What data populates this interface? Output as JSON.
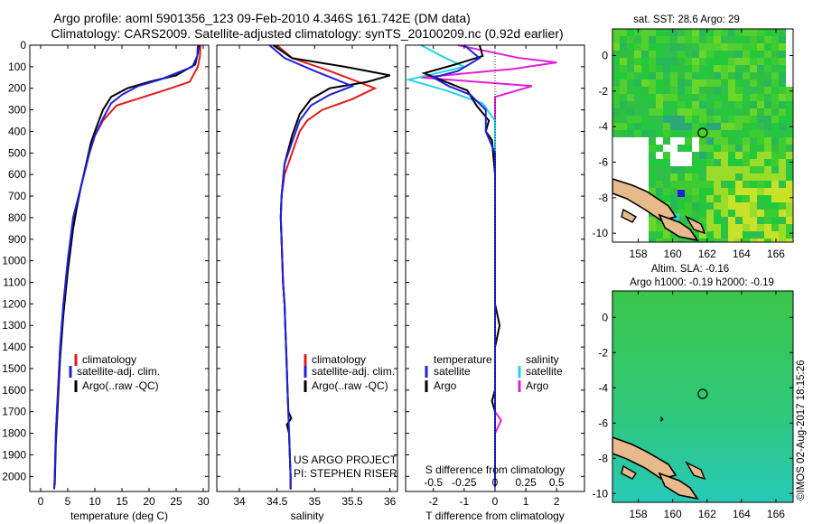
{
  "header": {
    "line1": "Argo profile: aoml 5901356_123 09-Feb-2010 4.346S 161.742E (DM data)",
    "line2": "Climatology: CARS2009. Satellite-adjusted climatology: synTS_20100209.nc (0.92d earlier)"
  },
  "colors": {
    "climatology": "#e31a1c",
    "satellite": "#1f1fdd",
    "argo": "#000000",
    "sat_salinity": "#22d5e8",
    "argo_salinity": "#e020d8"
  },
  "chart_data": [
    {
      "type": "line",
      "name": "temperature",
      "xlabel": "temperature (deg C)",
      "ylabel": "",
      "xlim": [
        -2,
        31
      ],
      "ylim": [
        2070,
        0
      ],
      "xticks": [
        "0",
        "5",
        "10",
        "15",
        "20",
        "25",
        "30"
      ],
      "yticks": [
        "0",
        "100",
        "200",
        "300",
        "400",
        "500",
        "600",
        "700",
        "800",
        "900",
        "1000",
        "1100",
        "1200",
        "1300",
        "1400",
        "1500",
        "1600",
        "1700",
        "1800",
        "1900",
        "2000"
      ],
      "legend": [
        "climatology",
        "satellite-adj. clim.",
        "Argo(..raw -QC)"
      ],
      "series": [
        {
          "name": "climatology",
          "points": [
            [
              29.5,
              0
            ],
            [
              29.4,
              50
            ],
            [
              29,
              100
            ],
            [
              27.5,
              170
            ],
            [
              24,
              200
            ],
            [
              19,
              240
            ],
            [
              14,
              280
            ],
            [
              11.5,
              350
            ],
            [
              10,
              420
            ],
            [
              9,
              500
            ],
            [
              8,
              600
            ],
            [
              7,
              700
            ],
            [
              6,
              800
            ],
            [
              5.5,
              900
            ],
            [
              5,
              1000
            ],
            [
              4.6,
              1100
            ],
            [
              4.2,
              1200
            ],
            [
              3.9,
              1300
            ],
            [
              3.6,
              1400
            ],
            [
              3.4,
              1500
            ],
            [
              3.2,
              1600
            ],
            [
              3,
              1700
            ],
            [
              2.8,
              1800
            ],
            [
              2.7,
              1900
            ],
            [
              2.6,
              2000
            ],
            [
              2.5,
              2060
            ]
          ]
        },
        {
          "name": "satellite",
          "points": [
            [
              29,
              0
            ],
            [
              28.9,
              50
            ],
            [
              28,
              100
            ],
            [
              22,
              160
            ],
            [
              18,
              190
            ],
            [
              15,
              230
            ],
            [
              13,
              270
            ],
            [
              11.5,
              340
            ],
            [
              10,
              420
            ],
            [
              9,
              500
            ],
            [
              8,
              600
            ],
            [
              7,
              700
            ],
            [
              6,
              800
            ],
            [
              5.5,
              900
            ],
            [
              5,
              1000
            ],
            [
              4.6,
              1100
            ],
            [
              4.2,
              1200
            ],
            [
              3.9,
              1300
            ],
            [
              3.6,
              1400
            ],
            [
              3.4,
              1500
            ],
            [
              3.2,
              1600
            ],
            [
              3,
              1700
            ],
            [
              2.8,
              1800
            ],
            [
              2.7,
              1900
            ],
            [
              2.6,
              2000
            ],
            [
              2.5,
              2060
            ]
          ]
        },
        {
          "name": "argo",
          "points": [
            [
              29.2,
              0
            ],
            [
              29,
              40
            ],
            [
              28.5,
              90
            ],
            [
              25,
              140
            ],
            [
              20,
              170
            ],
            [
              16,
              200
            ],
            [
              13,
              240
            ],
            [
              11.5,
              300
            ],
            [
              10.3,
              380
            ],
            [
              9.3,
              450
            ],
            [
              8.4,
              550
            ],
            [
              7.5,
              650
            ],
            [
              6.7,
              750
            ],
            [
              6,
              850
            ],
            [
              5.5,
              950
            ],
            [
              5,
              1050
            ],
            [
              4.6,
              1150
            ],
            [
              4.2,
              1250
            ],
            [
              3.9,
              1350
            ],
            [
              3.6,
              1450
            ],
            [
              3.4,
              1550
            ],
            [
              3.2,
              1650
            ],
            [
              3,
              1750
            ],
            [
              2.8,
              1850
            ],
            [
              2.7,
              1950
            ],
            [
              2.6,
              2040
            ]
          ]
        }
      ]
    },
    {
      "type": "line",
      "name": "salinity",
      "xlabel": "salinity",
      "ylabel": "",
      "xlim": [
        33.7,
        36.1
      ],
      "ylim": [
        2070,
        0
      ],
      "xticks": [
        "34",
        "34.5",
        "35",
        "35.5",
        "36"
      ],
      "legend": [
        "climatology",
        "satellite-adj. clim.",
        "Argo(..raw -QC)"
      ],
      "annotation": [
        "US ARGO PROJECT",
        "PI: STEPHEN RISER"
      ],
      "series": [
        {
          "name": "climatology",
          "points": [
            [
              34.5,
              0
            ],
            [
              34.7,
              60
            ],
            [
              35.2,
              120
            ],
            [
              35.8,
              200
            ],
            [
              35.5,
              250
            ],
            [
              35.1,
              300
            ],
            [
              34.9,
              350
            ],
            [
              34.8,
              400
            ],
            [
              34.7,
              500
            ],
            [
              34.6,
              600
            ],
            [
              34.56,
              700
            ],
            [
              34.55,
              800
            ],
            [
              34.56,
              900
            ],
            [
              34.57,
              1000
            ],
            [
              34.58,
              1100
            ],
            [
              34.6,
              1200
            ],
            [
              34.61,
              1300
            ],
            [
              34.62,
              1400
            ],
            [
              34.63,
              1500
            ],
            [
              34.64,
              1600
            ],
            [
              34.65,
              1700
            ],
            [
              34.66,
              1800
            ],
            [
              34.67,
              1900
            ],
            [
              34.68,
              2000
            ],
            [
              34.68,
              2060
            ]
          ]
        },
        {
          "name": "satellite",
          "points": [
            [
              34.4,
              0
            ],
            [
              34.6,
              60
            ],
            [
              35.0,
              120
            ],
            [
              35.5,
              190
            ],
            [
              35.2,
              230
            ],
            [
              34.95,
              280
            ],
            [
              34.8,
              350
            ],
            [
              34.7,
              450
            ],
            [
              34.6,
              550
            ],
            [
              34.56,
              700
            ],
            [
              34.55,
              800
            ],
            [
              34.56,
              900
            ],
            [
              34.57,
              1000
            ],
            [
              34.58,
              1100
            ],
            [
              34.6,
              1200
            ],
            [
              34.61,
              1300
            ],
            [
              34.62,
              1400
            ],
            [
              34.63,
              1500
            ],
            [
              34.64,
              1600
            ],
            [
              34.65,
              1700
            ],
            [
              34.66,
              1800
            ],
            [
              34.67,
              1900
            ],
            [
              34.68,
              2000
            ],
            [
              34.68,
              2060
            ]
          ]
        },
        {
          "name": "argo",
          "points": [
            [
              34.45,
              0
            ],
            [
              34.7,
              60
            ],
            [
              35.4,
              100
            ],
            [
              36,
              140
            ],
            [
              35.7,
              170
            ],
            [
              35.2,
              200
            ],
            [
              34.95,
              250
            ],
            [
              34.8,
              320
            ],
            [
              34.7,
              420
            ],
            [
              34.6,
              550
            ],
            [
              34.56,
              700
            ],
            [
              34.55,
              800
            ],
            [
              34.56,
              900
            ],
            [
              34.57,
              1000
            ],
            [
              34.58,
              1100
            ],
            [
              34.6,
              1200
            ],
            [
              34.61,
              1300
            ],
            [
              34.62,
              1400
            ],
            [
              34.63,
              1500
            ],
            [
              34.64,
              1600
            ],
            [
              34.65,
              1700
            ],
            [
              34.69,
              1730
            ],
            [
              34.63,
              1760
            ],
            [
              34.66,
              1800
            ],
            [
              34.67,
              1900
            ],
            [
              34.68,
              2000
            ],
            [
              34.68,
              2060
            ]
          ]
        }
      ]
    },
    {
      "type": "line",
      "name": "difference",
      "xlabel": "T difference from climatology",
      "ylabel": "",
      "x2label": "S difference from climatology",
      "xlim": [
        -2.9,
        2.9
      ],
      "ylim": [
        2070,
        0
      ],
      "xticks": [
        "-2",
        "-1",
        "0",
        "1",
        "2"
      ],
      "sticks": [
        "-0.5",
        "-0.25",
        "0",
        "0.25",
        "0.5"
      ],
      "legend": [
        "temperature",
        "salinity",
        "satellite",
        "Argo",
        "satellite",
        "Argo"
      ],
      "series": [
        {
          "name": "temperature satellite",
          "points": [
            [
              -1,
              0
            ],
            [
              -0.5,
              60
            ],
            [
              -1.2,
              120
            ],
            [
              -2,
              150
            ],
            [
              -1.5,
              190
            ],
            [
              -0.8,
              230
            ],
            [
              -0.3,
              300
            ],
            [
              -0.3,
              400
            ],
            [
              0,
              500
            ],
            [
              0,
              600
            ],
            [
              0,
              700
            ],
            [
              0,
              800
            ],
            [
              0,
              900
            ],
            [
              0,
              1000
            ],
            [
              0,
              1200
            ],
            [
              0,
              1400
            ],
            [
              0,
              1600
            ],
            [
              0,
              1800
            ],
            [
              0,
              2050
            ]
          ]
        },
        {
          "name": "temperature Argo",
          "points": [
            [
              -0.5,
              0
            ],
            [
              -0.4,
              50
            ],
            [
              -1.3,
              90
            ],
            [
              -2.3,
              130
            ],
            [
              -1.6,
              170
            ],
            [
              -0.9,
              210
            ],
            [
              -0.6,
              280
            ],
            [
              -0.2,
              350
            ],
            [
              -0.3,
              400
            ],
            [
              -0.1,
              440
            ],
            [
              0,
              600
            ],
            [
              0,
              800
            ],
            [
              0,
              1000
            ],
            [
              0,
              1200
            ],
            [
              0.15,
              1300
            ],
            [
              0,
              1400
            ],
            [
              0,
              1600
            ],
            [
              -0.1,
              1650
            ],
            [
              0,
              1700
            ],
            [
              0,
              2050
            ]
          ]
        },
        {
          "name": "salinity satellite",
          "points": [
            [
              -0.6,
              0
            ],
            [
              -0.4,
              60
            ],
            [
              -0.25,
              100
            ],
            [
              -0.7,
              160
            ],
            [
              -0.4,
              210
            ],
            [
              -0.1,
              270
            ],
            [
              0,
              350
            ],
            [
              0,
              500
            ],
            [
              0,
              700
            ],
            [
              0,
              900
            ],
            [
              0,
              1200
            ],
            [
              0,
              1500
            ],
            [
              0,
              1800
            ],
            [
              0,
              2050
            ]
          ]
        },
        {
          "name": "salinity Argo",
          "points": [
            [
              -0.3,
              0
            ],
            [
              0.2,
              60
            ],
            [
              0.5,
              80
            ],
            [
              0.15,
              110
            ],
            [
              -0.6,
              150
            ],
            [
              0.3,
              190
            ],
            [
              0,
              240
            ],
            [
              0,
              300
            ],
            [
              0,
              500
            ],
            [
              0,
              700
            ],
            [
              0,
              900
            ],
            [
              0,
              1200
            ],
            [
              0,
              1500
            ],
            [
              0,
              1700
            ],
            [
              0.05,
              1740
            ],
            [
              0,
              1800
            ],
            [
              0,
              2050
            ]
          ]
        }
      ]
    },
    {
      "type": "heatmap",
      "name": "sst-map",
      "title": "sat. SST: 28.6  Argo: 29",
      "xlim": [
        156.5,
        167
      ],
      "ylim": [
        -10.5,
        1.5
      ],
      "xticks": [
        "158",
        "160",
        "162",
        "164",
        "166"
      ],
      "yticks": [
        "0",
        "-2",
        "-4",
        "-6",
        "-8",
        "-10"
      ],
      "marker": [
        161.742,
        -4.346
      ]
    },
    {
      "type": "heatmap",
      "name": "sla-map",
      "title": "Altim. SLA: -0.16",
      "subtitle": "Argo h1000: -0.19  h2000: -0.19",
      "xlim": [
        156.5,
        167
      ],
      "ylim": [
        -10.5,
        1.5
      ],
      "xticks": [
        "158",
        "160",
        "162",
        "164",
        "166"
      ],
      "yticks": [
        "0",
        "-2",
        "-4",
        "-6",
        "-8",
        "-10"
      ],
      "marker": [
        161.742,
        -4.346
      ]
    }
  ],
  "side_text": "©IMOS 02-Aug-2017 18:15:26"
}
